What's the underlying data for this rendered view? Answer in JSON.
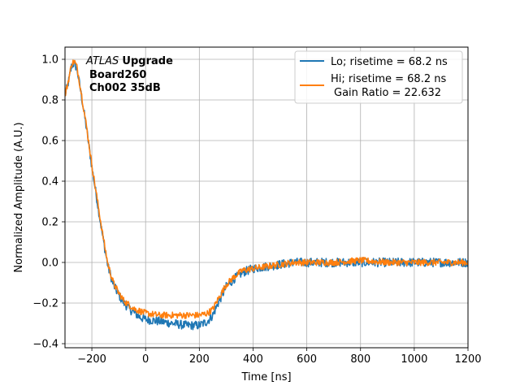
{
  "chart_data": {
    "type": "line",
    "title": "",
    "xlabel": "Time [ns]",
    "ylabel": "Normalized Amplitude (A.U.)",
    "xlim": [
      -300,
      1200
    ],
    "ylim": [
      -0.42,
      1.06
    ],
    "xticks": [
      -200,
      0,
      200,
      400,
      600,
      800,
      1000,
      1200
    ],
    "xtick_labels": [
      "−200",
      "0",
      "200",
      "400",
      "600",
      "800",
      "1000",
      "1200"
    ],
    "yticks": [
      -0.4,
      -0.2,
      0.0,
      0.2,
      0.4,
      0.6,
      0.8,
      1.0
    ],
    "ytick_labels": [
      "−0.4",
      "−0.2",
      "0.0",
      "0.2",
      "0.4",
      "0.6",
      "0.8",
      "1.0"
    ],
    "grid": true,
    "legend_position": "top-right",
    "annotation": {
      "italic": "ATLAS",
      "bold_suffix": "Upgrade",
      "line2": "Board260",
      "line3": "Ch002 35dB"
    },
    "series": [
      {
        "name": "Lo; risetime = 68.2 ns",
        "color": "#1f77b4",
        "noise": 0.022,
        "x": [
          -300,
          -285,
          -275,
          -265,
          -255,
          -240,
          -220,
          -200,
          -180,
          -160,
          -140,
          -120,
          -100,
          -80,
          -60,
          -40,
          -20,
          0,
          50,
          100,
          150,
          200,
          230,
          250,
          270,
          300,
          330,
          360,
          400,
          450,
          500,
          550,
          600,
          700,
          800,
          900,
          1000,
          1100,
          1200
        ],
        "y": [
          0.82,
          0.9,
          0.97,
          0.98,
          0.95,
          0.83,
          0.66,
          0.47,
          0.3,
          0.13,
          -0.02,
          -0.11,
          -0.16,
          -0.2,
          -0.23,
          -0.25,
          -0.27,
          -0.28,
          -0.29,
          -0.3,
          -0.31,
          -0.31,
          -0.29,
          -0.26,
          -0.2,
          -0.12,
          -0.08,
          -0.05,
          -0.03,
          -0.02,
          -0.01,
          0.0,
          0.0,
          0.0,
          0.0,
          0.0,
          0.0,
          0.0,
          0.0
        ]
      },
      {
        "name": "Hi; risetime = 68.2 ns",
        "name_line2": "Gain Ratio = 22.632",
        "color": "#ff7f0e",
        "noise": 0.016,
        "x": [
          -300,
          -285,
          -275,
          -265,
          -255,
          -240,
          -220,
          -200,
          -180,
          -160,
          -140,
          -120,
          -100,
          -80,
          -60,
          -40,
          -20,
          0,
          50,
          100,
          150,
          200,
          230,
          250,
          270,
          300,
          330,
          360,
          400,
          450,
          500,
          550,
          600,
          700,
          800,
          900,
          1000,
          1100,
          1200
        ],
        "y": [
          0.82,
          0.91,
          0.98,
          0.99,
          0.96,
          0.84,
          0.67,
          0.48,
          0.31,
          0.14,
          -0.01,
          -0.1,
          -0.15,
          -0.19,
          -0.21,
          -0.23,
          -0.24,
          -0.25,
          -0.26,
          -0.26,
          -0.26,
          -0.26,
          -0.25,
          -0.23,
          -0.18,
          -0.11,
          -0.07,
          -0.04,
          -0.03,
          -0.02,
          -0.01,
          0.0,
          0.0,
          0.0,
          0.01,
          0.0,
          0.0,
          0.0,
          0.0
        ]
      }
    ]
  }
}
